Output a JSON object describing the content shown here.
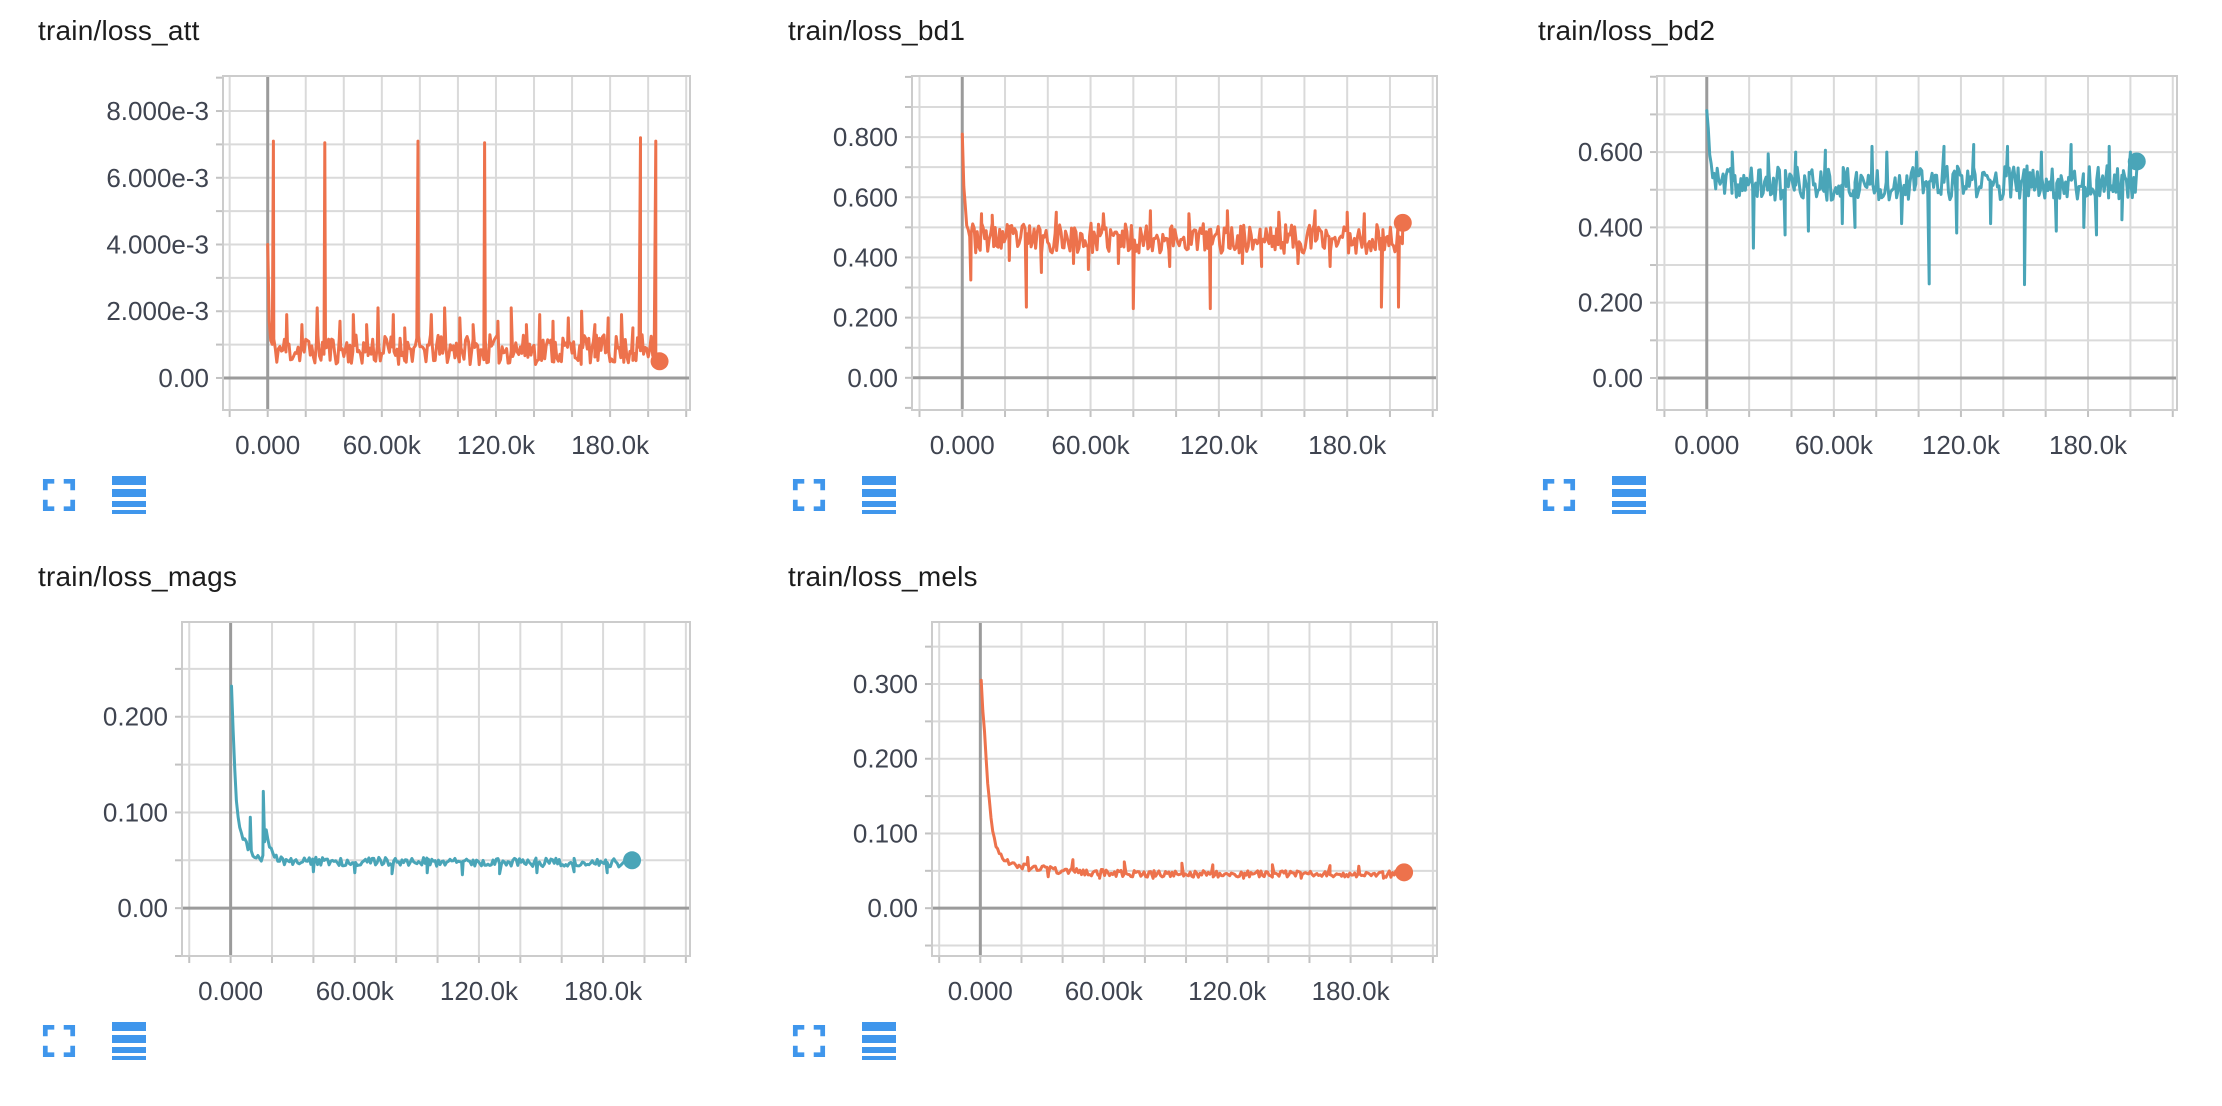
{
  "theme": {
    "background": "#ffffff",
    "grid_color": "#dadada",
    "grid_border_color": "#cccccc",
    "axis_line_color": "#9b9b9b",
    "tick_stub_color": "#c2c2c2",
    "tick_label_color": "#3f4450",
    "title_color": "#1c1c1c",
    "icon_color": "#3f96ec"
  },
  "toolbar": {
    "expand_icon": "fullscreen-corners",
    "runs_icon": "horizontal-bars"
  },
  "chart_data": [
    {
      "type": "line",
      "title": "train/loss_att",
      "color": "#ed724c",
      "grid": true,
      "legend": "none",
      "x_axis": {
        "unit": "steps (thousands)",
        "domain_k": [
          -23.5,
          222
        ],
        "minor_step_k": 20,
        "ticks": [
          {
            "v": 0,
            "label": "0.000"
          },
          {
            "v": 60,
            "label": "60.00k"
          },
          {
            "v": 120,
            "label": "120.0k"
          },
          {
            "v": 180,
            "label": "180.0k"
          }
        ]
      },
      "y_axis": {
        "domain": [
          -0.00096,
          0.00905
        ],
        "minor_step": 0.001,
        "ticks": [
          {
            "v": 0,
            "label": "0.00"
          },
          {
            "v": 0.002,
            "label": "2.000e-3"
          },
          {
            "v": 0.004,
            "label": "4.000e-3"
          },
          {
            "v": 0.006,
            "label": "6.000e-3"
          },
          {
            "v": 0.008,
            "label": "8.000e-3"
          }
        ]
      },
      "series": {
        "sample_step_k": 0.8,
        "noise_seed": 11,
        "anchors_x_mean_amp": [
          [
            0,
            0.004,
            0
          ],
          [
            1,
            0.0011,
            0.0005
          ],
          [
            3,
            0.00085,
            0.00045
          ],
          [
            206,
            0.00085,
            0.00045
          ]
        ],
        "events_x_y": [
          [
            3,
            0.0071
          ],
          [
            10,
            0.0019
          ],
          [
            18,
            0.0016
          ],
          [
            26,
            0.0021
          ],
          [
            30,
            0.00705
          ],
          [
            38,
            0.0017
          ],
          [
            45,
            0.0019
          ],
          [
            52,
            0.0016
          ],
          [
            58,
            0.0021
          ],
          [
            66,
            0.0019
          ],
          [
            72,
            0.0015
          ],
          [
            79,
            0.0071
          ],
          [
            86,
            0.0019
          ],
          [
            93,
            0.0021
          ],
          [
            101,
            0.0018
          ],
          [
            108,
            0.0016
          ],
          [
            114,
            0.00705
          ],
          [
            121,
            0.0017
          ],
          [
            128,
            0.0021
          ],
          [
            136,
            0.0016
          ],
          [
            143,
            0.0019
          ],
          [
            150,
            0.0017
          ],
          [
            158,
            0.0018
          ],
          [
            165,
            0.002
          ],
          [
            172,
            0.0016
          ],
          [
            179,
            0.0018
          ],
          [
            186,
            0.0019
          ],
          [
            192,
            0.0015
          ],
          [
            196,
            0.0072
          ],
          [
            204,
            0.0071
          ]
        ],
        "end_x_y": [
          206,
          0.0005
        ]
      }
    },
    {
      "type": "line",
      "title": "train/loss_bd1",
      "color": "#ed724c",
      "grid": true,
      "legend": "none",
      "x_axis": {
        "unit": "steps (thousands)",
        "domain_k": [
          -23.5,
          222
        ],
        "minor_step_k": 20,
        "ticks": [
          {
            "v": 0,
            "label": "0.000"
          },
          {
            "v": 60,
            "label": "60.00k"
          },
          {
            "v": 120,
            "label": "120.0k"
          },
          {
            "v": 180,
            "label": "180.0k"
          }
        ]
      },
      "y_axis": {
        "domain": [
          -0.107,
          1.003
        ],
        "minor_step": 0.1,
        "ticks": [
          {
            "v": 0,
            "label": "0.00"
          },
          {
            "v": 0.2,
            "label": "0.200"
          },
          {
            "v": 0.4,
            "label": "0.400"
          },
          {
            "v": 0.6,
            "label": "0.600"
          },
          {
            "v": 0.8,
            "label": "0.800"
          }
        ]
      },
      "series": {
        "sample_step_k": 0.7,
        "noise_seed": 23,
        "anchors_x_mean_amp": [
          [
            0,
            0.81,
            0
          ],
          [
            0.8,
            0.62,
            0.01
          ],
          [
            2,
            0.52,
            0.03
          ],
          [
            5,
            0.465,
            0.05
          ],
          [
            206,
            0.462,
            0.05
          ]
        ],
        "events_x_y": [
          [
            4,
            0.325
          ],
          [
            9,
            0.545
          ],
          [
            14,
            0.54
          ],
          [
            22,
            0.39
          ],
          [
            30,
            0.235
          ],
          [
            37,
            0.35
          ],
          [
            44,
            0.55
          ],
          [
            52,
            0.38
          ],
          [
            59,
            0.36
          ],
          [
            66,
            0.545
          ],
          [
            73,
            0.38
          ],
          [
            80,
            0.23
          ],
          [
            88,
            0.555
          ],
          [
            97,
            0.37
          ],
          [
            106,
            0.545
          ],
          [
            116,
            0.23
          ],
          [
            124,
            0.555
          ],
          [
            131,
            0.38
          ],
          [
            140,
            0.37
          ],
          [
            148,
            0.55
          ],
          [
            157,
            0.38
          ],
          [
            165,
            0.555
          ],
          [
            172,
            0.37
          ],
          [
            180,
            0.55
          ],
          [
            188,
            0.545
          ],
          [
            196,
            0.235
          ],
          [
            204,
            0.235
          ]
        ],
        "end_x_y": [
          206,
          0.515
        ]
      }
    },
    {
      "type": "line",
      "title": "train/loss_bd2",
      "color": "#4aa5b8",
      "grid": true,
      "legend": "none",
      "x_axis": {
        "unit": "steps (thousands)",
        "domain_k": [
          -23.5,
          222
        ],
        "minor_step_k": 20,
        "ticks": [
          {
            "v": 0,
            "label": "0.000"
          },
          {
            "v": 60,
            "label": "60.00k"
          },
          {
            "v": 120,
            "label": "120.0k"
          },
          {
            "v": 180,
            "label": "180.0k"
          }
        ]
      },
      "y_axis": {
        "domain": [
          -0.085,
          0.802
        ],
        "minor_step": 0.1,
        "ticks": [
          {
            "v": 0,
            "label": "0.00"
          },
          {
            "v": 0.2,
            "label": "0.200"
          },
          {
            "v": 0.4,
            "label": "0.400"
          },
          {
            "v": 0.6,
            "label": "0.600"
          }
        ]
      },
      "series": {
        "sample_step_k": 0.7,
        "noise_seed": 37,
        "anchors_x_mean_amp": [
          [
            0,
            0.71,
            0
          ],
          [
            0.8,
            0.65,
            0.005
          ],
          [
            2,
            0.56,
            0.02
          ],
          [
            5,
            0.515,
            0.045
          ],
          [
            206,
            0.52,
            0.045
          ]
        ],
        "events_x_y": [
          [
            12,
            0.6
          ],
          [
            22,
            0.345
          ],
          [
            29,
            0.595
          ],
          [
            37,
            0.38
          ],
          [
            42,
            0.6
          ],
          [
            48,
            0.39
          ],
          [
            56,
            0.605
          ],
          [
            64,
            0.41
          ],
          [
            70,
            0.4
          ],
          [
            78,
            0.615
          ],
          [
            85,
            0.6
          ],
          [
            92,
            0.41
          ],
          [
            99,
            0.6
          ],
          [
            105,
            0.25
          ],
          [
            112,
            0.615
          ],
          [
            118,
            0.385
          ],
          [
            126,
            0.62
          ],
          [
            134,
            0.41
          ],
          [
            142,
            0.615
          ],
          [
            150,
            0.248
          ],
          [
            158,
            0.6
          ],
          [
            165,
            0.39
          ],
          [
            172,
            0.62
          ],
          [
            178,
            0.4
          ],
          [
            184,
            0.38
          ],
          [
            190,
            0.615
          ],
          [
            196,
            0.42
          ],
          [
            200,
            0.6
          ]
        ],
        "end_x_y": [
          203,
          0.575
        ]
      }
    },
    {
      "type": "line",
      "title": "train/loss_mags",
      "color": "#4aa5b8",
      "grid": true,
      "legend": "none",
      "x_axis": {
        "unit": "steps (thousands)",
        "domain_k": [
          -23.5,
          222
        ],
        "minor_step_k": 20,
        "ticks": [
          {
            "v": 0,
            "label": "0.000"
          },
          {
            "v": 60,
            "label": "60.00k"
          },
          {
            "v": 120,
            "label": "120.0k"
          },
          {
            "v": 180,
            "label": "180.0k"
          }
        ]
      },
      "y_axis": {
        "domain": [
          -0.05,
          0.299
        ],
        "minor_step": 0.05,
        "ticks": [
          {
            "v": 0,
            "label": "0.00"
          },
          {
            "v": 0.1,
            "label": "0.100"
          },
          {
            "v": 0.2,
            "label": "0.200"
          }
        ]
      },
      "series": {
        "sample_step_k": 0.8,
        "noise_seed": 51,
        "anchors_x_mean_amp": [
          [
            0.4,
            0.232,
            0
          ],
          [
            1.2,
            0.19,
            0.004
          ],
          [
            2,
            0.145,
            0.004
          ],
          [
            3,
            0.108,
            0.004
          ],
          [
            4,
            0.09,
            0.004
          ],
          [
            5.5,
            0.076,
            0.004
          ],
          [
            7,
            0.068,
            0.004
          ],
          [
            9,
            0.06,
            0.004
          ],
          [
            11,
            0.057,
            0.0035
          ],
          [
            13,
            0.053,
            0.003
          ],
          [
            15.5,
            0.051,
            0.003
          ],
          [
            17,
            0.08,
            0.004
          ],
          [
            19,
            0.065,
            0.004
          ],
          [
            21,
            0.054,
            0.004
          ],
          [
            25,
            0.049,
            0.0045
          ],
          [
            194,
            0.0475,
            0.0045
          ]
        ],
        "events_x_y": [
          [
            9.5,
            0.095
          ],
          [
            15.8,
            0.122
          ],
          [
            40,
            0.038
          ],
          [
            60,
            0.037
          ],
          [
            78,
            0.036
          ],
          [
            95,
            0.037
          ],
          [
            112,
            0.035
          ],
          [
            130,
            0.036
          ],
          [
            148,
            0.037
          ],
          [
            166,
            0.038
          ],
          [
            182,
            0.037
          ]
        ],
        "end_x_y": [
          194,
          0.05
        ]
      }
    },
    {
      "type": "line",
      "title": "train/loss_mels",
      "color": "#ed724c",
      "grid": true,
      "legend": "none",
      "x_axis": {
        "unit": "steps (thousands)",
        "domain_k": [
          -23.5,
          222
        ],
        "minor_step_k": 20,
        "ticks": [
          {
            "v": 0,
            "label": "0.000"
          },
          {
            "v": 60,
            "label": "60.00k"
          },
          {
            "v": 120,
            "label": "120.0k"
          },
          {
            "v": 180,
            "label": "180.0k"
          }
        ]
      },
      "y_axis": {
        "domain": [
          -0.064,
          0.383
        ],
        "minor_step": 0.05,
        "ticks": [
          {
            "v": 0,
            "label": "0.00"
          },
          {
            "v": 0.1,
            "label": "0.100"
          },
          {
            "v": 0.2,
            "label": "0.200"
          },
          {
            "v": 0.3,
            "label": "0.300"
          }
        ]
      },
      "series": {
        "sample_step_k": 0.8,
        "noise_seed": 67,
        "anchors_x_mean_amp": [
          [
            0.4,
            0.305,
            0
          ],
          [
            1,
            0.272,
            0.004
          ],
          [
            1.8,
            0.245,
            0.004
          ],
          [
            2.6,
            0.21,
            0.004
          ],
          [
            3.4,
            0.175,
            0.004
          ],
          [
            4.2,
            0.148,
            0.004
          ],
          [
            5,
            0.125,
            0.004
          ],
          [
            6,
            0.104,
            0.004
          ],
          [
            7,
            0.09,
            0.004
          ],
          [
            8.5,
            0.078,
            0.004
          ],
          [
            10,
            0.07,
            0.004
          ],
          [
            12,
            0.065,
            0.0045
          ],
          [
            15,
            0.061,
            0.0045
          ],
          [
            19,
            0.057,
            0.0045
          ],
          [
            25,
            0.054,
            0.0045
          ],
          [
            35,
            0.051,
            0.0045
          ],
          [
            50,
            0.048,
            0.0045
          ],
          [
            80,
            0.046,
            0.0045
          ],
          [
            206,
            0.0455,
            0.0045
          ]
        ],
        "events_x_y": [
          [
            23,
            0.068
          ],
          [
            33,
            0.042
          ],
          [
            45,
            0.065
          ],
          [
            58,
            0.04
          ],
          [
            70,
            0.062
          ],
          [
            84,
            0.04
          ],
          [
            98,
            0.06
          ],
          [
            113,
            0.058
          ],
          [
            128,
            0.04
          ],
          [
            142,
            0.058
          ],
          [
            156,
            0.04
          ],
          [
            170,
            0.057
          ],
          [
            184,
            0.056
          ],
          [
            196,
            0.04
          ]
        ],
        "end_x_y": [
          206,
          0.048
        ]
      }
    }
  ]
}
